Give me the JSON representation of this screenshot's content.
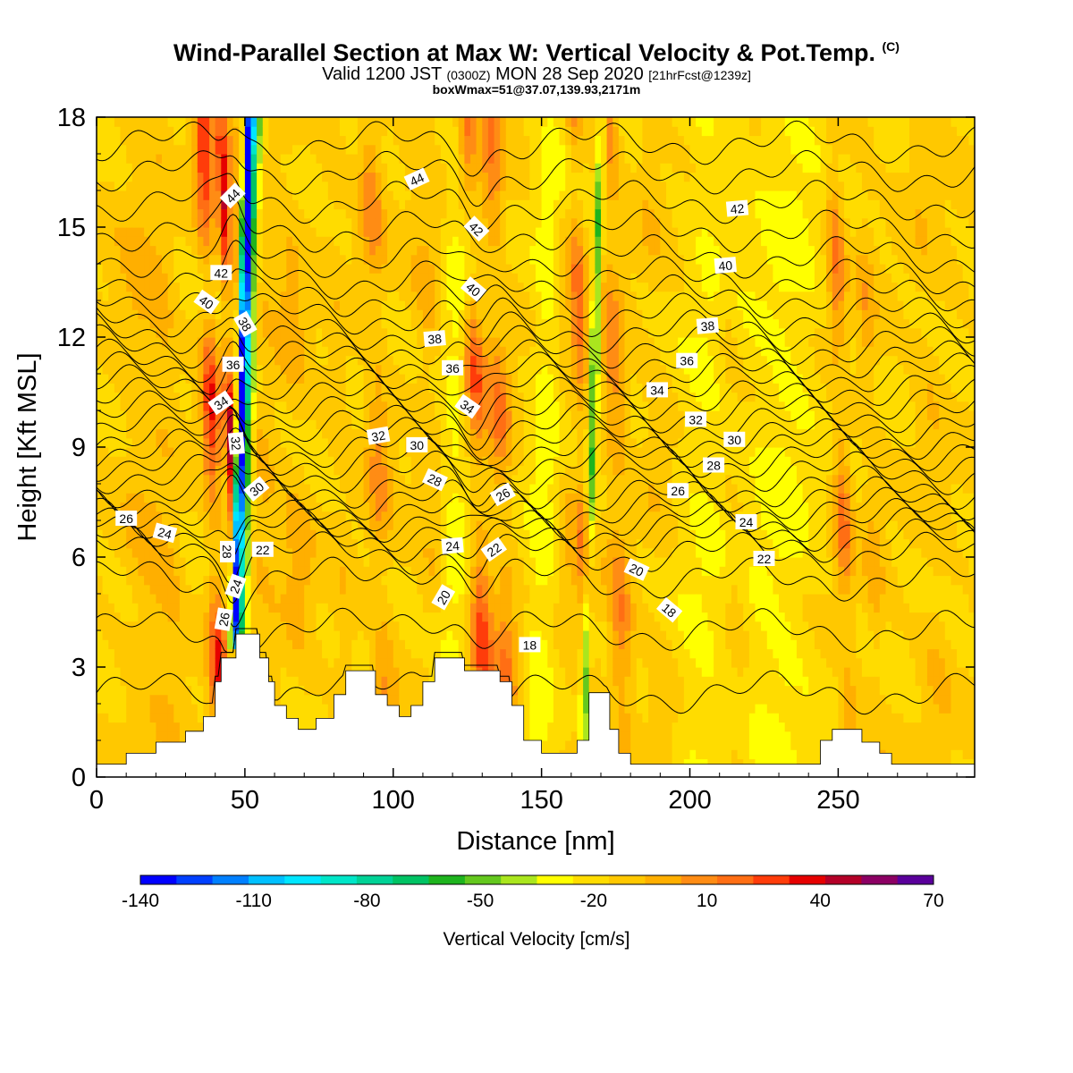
{
  "title": {
    "main": "Wind-Parallel Section at Max W: Vertical Velocity & Pot.Temp.",
    "copyright": "(C)"
  },
  "subtitle": {
    "valid_prefix": "Valid 1200 JST",
    "utc": "(0300Z)",
    "date": "MON 28 Sep 2020",
    "forecast": "[21hrFcst@1239z]"
  },
  "subtitle2": "boxWmax=51@37.07,139.93,2171m",
  "chart_data": {
    "type": "heatmap",
    "xlabel": "Distance [nm]",
    "ylabel": "Height [Kft MSL]",
    "xlim": [
      0,
      296
    ],
    "ylim": [
      0,
      18
    ],
    "xticks": [
      0,
      50,
      100,
      150,
      200,
      250
    ],
    "yticks": [
      0,
      3,
      6,
      9,
      12,
      15,
      18
    ],
    "grid": false,
    "colorbar": {
      "label": "Vertical Velocity [cm/s]",
      "min": -140,
      "max": 70,
      "step": 10,
      "tick_labels": [
        "-140",
        "-110",
        "-80",
        "-50",
        "-20",
        "10",
        "40",
        "70"
      ],
      "colors": [
        "#0000ff",
        "#0040ff",
        "#0080ff",
        "#00c0ff",
        "#00e6ff",
        "#00e6c8",
        "#00d296",
        "#00c364",
        "#1eb41e",
        "#64c81e",
        "#aae61e",
        "#ffff00",
        "#ffdc00",
        "#ffc800",
        "#ffaf00",
        "#ff8c14",
        "#ff6e14",
        "#ff3c0a",
        "#e60000",
        "#b40028",
        "#8c0064",
        "#5a009b"
      ]
    },
    "background_value": -10,
    "updraft_columns": [
      {
        "x": 18,
        "w": 8,
        "amp": 15
      },
      {
        "x": 25,
        "w": 4,
        "amp": 8
      },
      {
        "x": 40,
        "w": 3,
        "amp": 50
      },
      {
        "x": 46,
        "w": 1.6,
        "amp": 65
      },
      {
        "x": 49,
        "w": 1.8,
        "amp": 20
      },
      {
        "x": 56,
        "w": 6,
        "amp": 15
      },
      {
        "x": 68,
        "w": 5,
        "amp": 15
      },
      {
        "x": 83,
        "w": 4,
        "amp": 8
      },
      {
        "x": 96,
        "w": 4,
        "amp": 25
      },
      {
        "x": 114,
        "w": 5,
        "amp": 15
      },
      {
        "x": 129,
        "w": 3.5,
        "amp": 45
      },
      {
        "x": 137,
        "w": 4,
        "amp": 30
      },
      {
        "x": 160,
        "w": 4,
        "amp": 12
      },
      {
        "x": 165,
        "w": 2.5,
        "amp": 35
      },
      {
        "x": 176,
        "w": 4,
        "amp": 30
      },
      {
        "x": 190,
        "w": 5,
        "amp": 8
      },
      {
        "x": 215,
        "w": 4,
        "amp": 10
      },
      {
        "x": 252,
        "w": 3,
        "amp": 32
      },
      {
        "x": 262,
        "w": 3,
        "amp": 15
      },
      {
        "x": 282,
        "w": 5,
        "amp": 10
      }
    ],
    "downdraft_columns": [
      {
        "x": 47.5,
        "w": 1.6,
        "amp": -140
      },
      {
        "x": 50,
        "w": 2,
        "amp": -40
      },
      {
        "x": 120,
        "w": 6,
        "amp": -15
      },
      {
        "x": 150,
        "w": 5,
        "amp": -15
      },
      {
        "x": 166,
        "w": 1.6,
        "amp": -40
      },
      {
        "x": 205,
        "w": 10,
        "amp": -10
      },
      {
        "x": 230,
        "w": 12,
        "amp": -12
      }
    ],
    "terrain_kft": [
      [
        0,
        0.35
      ],
      [
        10,
        0.35
      ],
      [
        10,
        0.65
      ],
      [
        20,
        0.65
      ],
      [
        20,
        0.95
      ],
      [
        30,
        0.95
      ],
      [
        30,
        1.25
      ],
      [
        36,
        1.25
      ],
      [
        36,
        1.65
      ],
      [
        40,
        1.65
      ],
      [
        40,
        2.6
      ],
      [
        42,
        2.6
      ],
      [
        42,
        3.25
      ],
      [
        47,
        3.25
      ],
      [
        47,
        3.9
      ],
      [
        55,
        3.9
      ],
      [
        55,
        3.25
      ],
      [
        58,
        3.25
      ],
      [
        58,
        2.6
      ],
      [
        60,
        2.6
      ],
      [
        60,
        1.95
      ],
      [
        64,
        1.95
      ],
      [
        64,
        1.6
      ],
      [
        68,
        1.6
      ],
      [
        68,
        1.3
      ],
      [
        74,
        1.3
      ],
      [
        74,
        1.6
      ],
      [
        80,
        1.6
      ],
      [
        80,
        2.25
      ],
      [
        84,
        2.25
      ],
      [
        84,
        2.9
      ],
      [
        94,
        2.9
      ],
      [
        94,
        2.25
      ],
      [
        98,
        2.25
      ],
      [
        98,
        1.95
      ],
      [
        102,
        1.95
      ],
      [
        102,
        1.65
      ],
      [
        106,
        1.65
      ],
      [
        106,
        1.95
      ],
      [
        110,
        1.95
      ],
      [
        110,
        2.6
      ],
      [
        114,
        2.6
      ],
      [
        114,
        3.25
      ],
      [
        124,
        3.25
      ],
      [
        124,
        2.9
      ],
      [
        136,
        2.9
      ],
      [
        136,
        2.6
      ],
      [
        140,
        2.6
      ],
      [
        140,
        1.95
      ],
      [
        144,
        1.95
      ],
      [
        144,
        1.0
      ],
      [
        150,
        1.0
      ],
      [
        150,
        0.65
      ],
      [
        162,
        0.65
      ],
      [
        162,
        1.0
      ],
      [
        166,
        1.0
      ],
      [
        166,
        2.3
      ],
      [
        173,
        2.3
      ],
      [
        173,
        1.3
      ],
      [
        176,
        1.3
      ],
      [
        176,
        0.65
      ],
      [
        180,
        0.65
      ],
      [
        180,
        0.35
      ],
      [
        244,
        0.35
      ],
      [
        244,
        1.0
      ],
      [
        248,
        1.0
      ],
      [
        248,
        1.3
      ],
      [
        258,
        1.3
      ],
      [
        258,
        0.95
      ],
      [
        264,
        0.95
      ],
      [
        264,
        0.65
      ],
      [
        268,
        0.65
      ],
      [
        268,
        0.35
      ],
      [
        296,
        0.35
      ]
    ],
    "isentropes": {
      "label": "Potential temperature contours (°C), every 1 °C",
      "base_heights_kft": [
        [
          2.3,
          17
        ],
        [
          4.0,
          18
        ],
        [
          5.4,
          19
        ],
        [
          6.1,
          20
        ],
        [
          6.45,
          21
        ],
        [
          6.75,
          22
        ],
        [
          7.0,
          23
        ],
        [
          7.3,
          24
        ],
        [
          7.6,
          25
        ],
        [
          7.9,
          26
        ],
        [
          8.3,
          27
        ],
        [
          8.65,
          28
        ],
        [
          8.95,
          29
        ],
        [
          9.25,
          30
        ],
        [
          9.6,
          31
        ],
        [
          9.95,
          32
        ],
        [
          10.3,
          33
        ],
        [
          10.65,
          34
        ],
        [
          11.0,
          35
        ],
        [
          11.35,
          36
        ],
        [
          11.75,
          37
        ],
        [
          12.15,
          38
        ],
        [
          12.6,
          39
        ],
        [
          13.1,
          40
        ],
        [
          13.6,
          41
        ],
        [
          14.2,
          42
        ],
        [
          14.9,
          43
        ],
        [
          15.7,
          44
        ],
        [
          16.5,
          45
        ],
        [
          17.3,
          46
        ]
      ],
      "labels": [
        {
          "text": "44",
          "x": 46,
          "y": 15.85,
          "rot": -45
        },
        {
          "text": "44",
          "x": 108,
          "y": 16.3,
          "rot": -25
        },
        {
          "text": "42",
          "x": 128,
          "y": 14.95,
          "rot": 45
        },
        {
          "text": "42",
          "x": 216,
          "y": 15.5,
          "rot": -5
        },
        {
          "text": "42",
          "x": 42,
          "y": 13.75,
          "rot": 0
        },
        {
          "text": "40",
          "x": 37,
          "y": 12.95,
          "rot": 35
        },
        {
          "text": "40",
          "x": 127,
          "y": 13.3,
          "rot": 40
        },
        {
          "text": "40",
          "x": 212,
          "y": 13.95,
          "rot": -5
        },
        {
          "text": "38",
          "x": 50,
          "y": 12.35,
          "rot": 60
        },
        {
          "text": "38",
          "x": 114,
          "y": 11.95,
          "rot": -5
        },
        {
          "text": "38",
          "x": 206,
          "y": 12.3,
          "rot": -5
        },
        {
          "text": "36",
          "x": 46,
          "y": 11.25,
          "rot": 0
        },
        {
          "text": "36",
          "x": 120,
          "y": 11.15,
          "rot": 0
        },
        {
          "text": "36",
          "x": 199,
          "y": 11.35,
          "rot": 0
        },
        {
          "text": "34",
          "x": 42,
          "y": 10.2,
          "rot": -35
        },
        {
          "text": "34",
          "x": 125,
          "y": 10.1,
          "rot": 35
        },
        {
          "text": "34",
          "x": 189,
          "y": 10.55,
          "rot": 0
        },
        {
          "text": "32",
          "x": 47,
          "y": 9.1,
          "rot": 85
        },
        {
          "text": "32",
          "x": 95,
          "y": 9.3,
          "rot": -10
        },
        {
          "text": "32",
          "x": 202,
          "y": 9.75,
          "rot": 0
        },
        {
          "text": "30",
          "x": 54,
          "y": 7.85,
          "rot": -40
        },
        {
          "text": "30",
          "x": 108,
          "y": 9.05,
          "rot": 0
        },
        {
          "text": "30",
          "x": 215,
          "y": 9.2,
          "rot": 0
        },
        {
          "text": "28",
          "x": 114,
          "y": 8.1,
          "rot": 25
        },
        {
          "text": "28",
          "x": 208,
          "y": 8.5,
          "rot": 0
        },
        {
          "text": "28",
          "x": 44,
          "y": 6.15,
          "rot": 90
        },
        {
          "text": "26",
          "x": 10,
          "y": 7.05,
          "rot": 0
        },
        {
          "text": "26",
          "x": 137,
          "y": 7.7,
          "rot": -30
        },
        {
          "text": "26",
          "x": 196,
          "y": 7.8,
          "rot": 0
        },
        {
          "text": "24",
          "x": 23,
          "y": 6.65,
          "rot": 15
        },
        {
          "text": "24",
          "x": 120,
          "y": 6.3,
          "rot": -5
        },
        {
          "text": "24",
          "x": 219,
          "y": 6.95,
          "rot": 0
        },
        {
          "text": "24",
          "x": 47,
          "y": 5.2,
          "rot": -70
        },
        {
          "text": "22",
          "x": 56,
          "y": 6.2,
          "rot": 0
        },
        {
          "text": "22",
          "x": 134,
          "y": 6.2,
          "rot": -35
        },
        {
          "text": "22",
          "x": 225,
          "y": 5.95,
          "rot": 0
        },
        {
          "text": "20",
          "x": 117,
          "y": 4.9,
          "rot": -60
        },
        {
          "text": "20",
          "x": 182,
          "y": 5.65,
          "rot": 25
        },
        {
          "text": "18",
          "x": 146,
          "y": 3.6,
          "rot": 0
        },
        {
          "text": "18",
          "x": 193,
          "y": 4.55,
          "rot": 40
        },
        {
          "text": "26",
          "x": 43,
          "y": 4.3,
          "rot": -80
        }
      ]
    }
  }
}
